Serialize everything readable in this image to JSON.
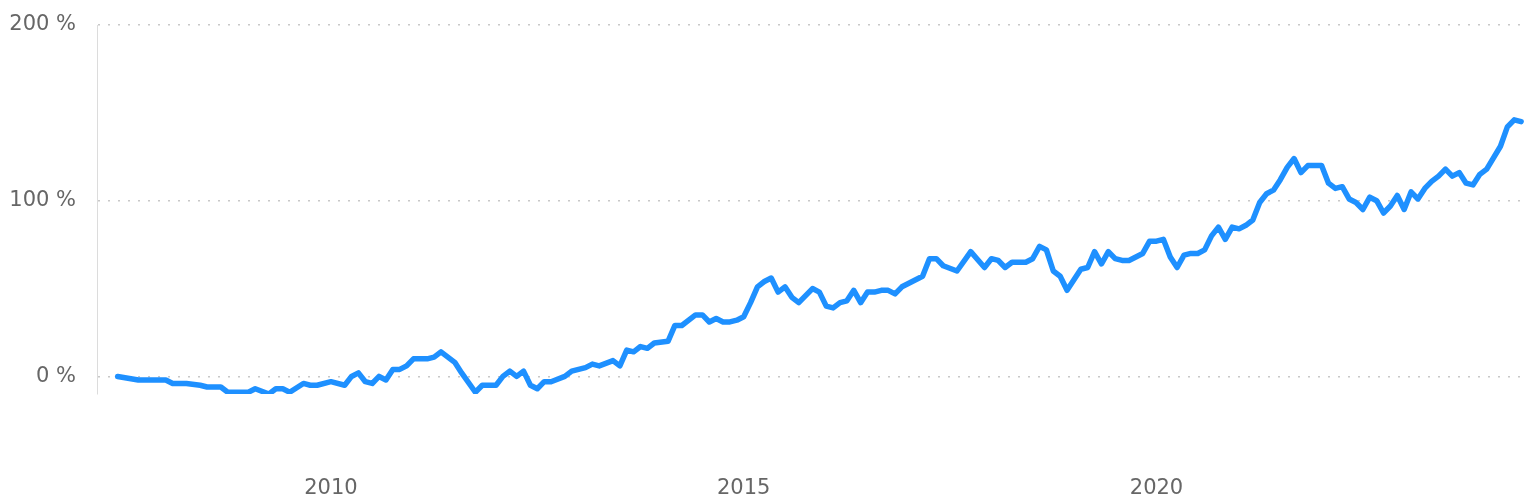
{
  "chart_data": {
    "type": "line",
    "color": "#1e90ff",
    "grid": "y",
    "line_style": "solid",
    "marker": "none",
    "xlim": [
      "2007-03",
      "2024-07"
    ],
    "xticks": [
      "2010",
      "2015",
      "2020"
    ],
    "ylim": [
      -10,
      200
    ],
    "yticks": [
      {
        "value": 0,
        "label": "0 %"
      },
      {
        "value": 100,
        "label": "100 %"
      },
      {
        "value": 200,
        "label": "200 %"
      }
    ],
    "x": [
      "2007-06",
      "2007-09",
      "2007-11",
      "2008-01",
      "2008-02",
      "2008-04",
      "2008-06",
      "2008-07",
      "2008-09",
      "2008-10",
      "2008-11",
      "2009-01",
      "2009-02",
      "2009-04",
      "2009-05",
      "2009-06",
      "2009-07",
      "2009-09",
      "2009-10",
      "2009-11",
      "2010-01",
      "2010-03",
      "2010-04",
      "2010-05",
      "2010-06",
      "2010-07",
      "2010-08",
      "2010-09",
      "2010-10",
      "2010-11",
      "2010-12",
      "2011-01",
      "2011-03",
      "2011-04",
      "2011-05",
      "2011-06",
      "2011-07",
      "2011-08",
      "2011-10",
      "2011-11",
      "2012-01",
      "2012-02",
      "2012-03",
      "2012-04",
      "2012-05",
      "2012-06",
      "2012-07",
      "2012-08",
      "2012-09",
      "2012-11",
      "2012-12",
      "2013-02",
      "2013-03",
      "2013-04",
      "2013-06",
      "2013-07",
      "2013-08",
      "2013-09",
      "2013-10",
      "2013-11",
      "2013-12",
      "2014-02",
      "2014-03",
      "2014-04",
      "2014-06",
      "2014-07",
      "2014-08",
      "2014-09",
      "2014-10",
      "2014-11",
      "2014-12",
      "2015-01",
      "2015-02",
      "2015-03",
      "2015-04",
      "2015-05",
      "2015-06",
      "2015-07",
      "2015-08",
      "2015-09",
      "2015-11",
      "2015-12",
      "2016-01",
      "2016-02",
      "2016-03",
      "2016-04",
      "2016-05",
      "2016-06",
      "2016-07",
      "2016-08",
      "2016-09",
      "2016-10",
      "2016-11",
      "2016-12",
      "2017-01",
      "2017-03",
      "2017-04",
      "2017-05",
      "2017-06",
      "2017-08",
      "2017-10",
      "2017-12",
      "2018-01",
      "2018-02",
      "2018-03",
      "2018-04",
      "2018-05",
      "2018-06",
      "2018-07",
      "2018-08",
      "2018-09",
      "2018-10",
      "2018-11",
      "2018-12",
      "2019-01",
      "2019-02",
      "2019-03",
      "2019-04",
      "2019-05",
      "2019-06",
      "2019-07",
      "2019-08",
      "2019-09",
      "2019-11",
      "2019-12",
      "2020-01",
      "2020-02",
      "2020-03",
      "2020-04",
      "2020-05",
      "2020-06",
      "2020-07",
      "2020-08",
      "2020-09",
      "2020-10",
      "2020-11",
      "2020-12",
      "2021-01",
      "2021-02",
      "2021-03",
      "2021-04",
      "2021-05",
      "2021-06",
      "2021-07",
      "2021-08",
      "2021-09",
      "2021-10",
      "2021-11",
      "2022-01",
      "2022-02",
      "2022-03",
      "2022-04",
      "2022-05",
      "2022-06",
      "2022-07",
      "2022-08",
      "2022-09",
      "2022-10",
      "2022-11",
      "2022-12",
      "2023-01",
      "2023-02",
      "2023-03",
      "2023-04",
      "2023-05",
      "2023-06",
      "2023-07",
      "2023-08",
      "2023-09",
      "2023-10",
      "2023-11",
      "2023-12",
      "2024-01",
      "2024-03",
      "2024-04",
      "2024-05",
      "2024-06"
    ],
    "values": [
      0,
      -2,
      -2,
      -2,
      -4,
      -4,
      -5,
      -6,
      -6,
      -9,
      -9,
      -9,
      -7,
      -10,
      -7,
      -7,
      -9,
      -4,
      -5,
      -5,
      -3,
      -5,
      0,
      2,
      -3,
      -4,
      0,
      -2,
      4,
      4,
      6,
      10,
      10,
      11,
      14,
      11,
      8,
      2,
      -9,
      -5,
      -5,
      0,
      3,
      0,
      3,
      -5,
      -7,
      -3,
      -3,
      0,
      3,
      5,
      7,
      6,
      9,
      6,
      15,
      14,
      17,
      16,
      19,
      20,
      29,
      29,
      35,
      35,
      31,
      33,
      31,
      31,
      32,
      34,
      42,
      51,
      54,
      56,
      48,
      51,
      45,
      42,
      50,
      48,
      40,
      39,
      42,
      43,
      49,
      42,
      48,
      48,
      49,
      49,
      47,
      51,
      53,
      57,
      67,
      67,
      63,
      60,
      71,
      62,
      67,
      66,
      62,
      65,
      65,
      65,
      67,
      74,
      72,
      60,
      57,
      49,
      55,
      61,
      62,
      71,
      64,
      71,
      67,
      66,
      66,
      70,
      77,
      77,
      78,
      68,
      62,
      69,
      70,
      70,
      72,
      80,
      85,
      78,
      85,
      84,
      86,
      89,
      99,
      104,
      106,
      112,
      119,
      124,
      116,
      120,
      120,
      110,
      107,
      108,
      101,
      99,
      95,
      102,
      100,
      93,
      97,
      103,
      95,
      105,
      101,
      107,
      111,
      114,
      118,
      114,
      116,
      110,
      109,
      115,
      118,
      131,
      142,
      146,
      145
    ]
  }
}
